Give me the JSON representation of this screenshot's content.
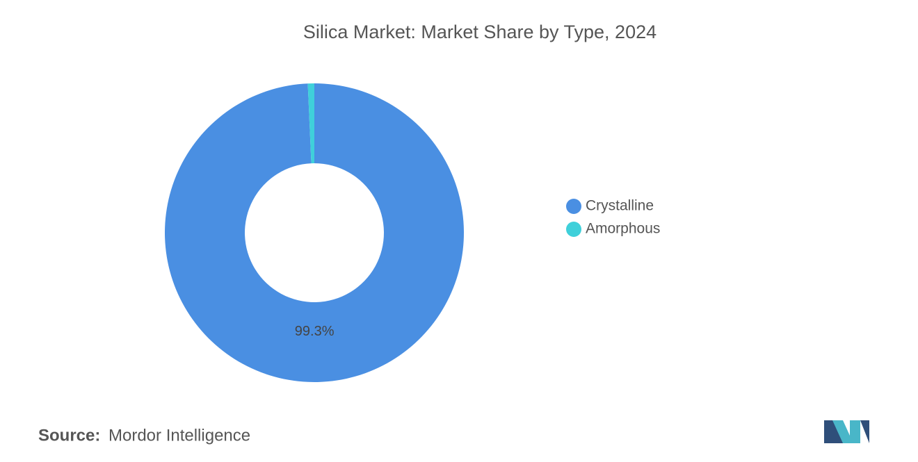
{
  "chart_data": {
    "type": "donut",
    "title": "Silica Market: Market Share by Type, 2024",
    "categories": [
      "Crystalline",
      "Amorphous"
    ],
    "values": [
      99.3,
      0.7
    ],
    "value_labels": [
      "99.3%",
      null
    ],
    "colors": [
      "#4a8fe2",
      "#3fd0da"
    ],
    "legend": "right"
  },
  "source": {
    "label": "Source:",
    "text": "Mordor Intelligence"
  }
}
